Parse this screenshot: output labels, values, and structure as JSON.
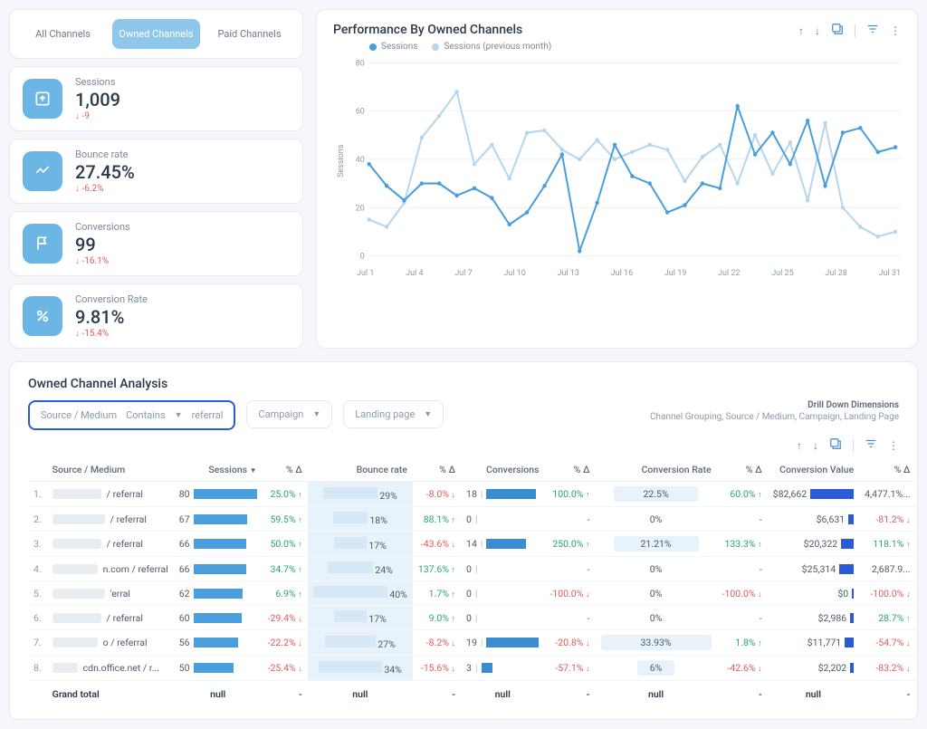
{
  "tabs": {
    "all": "All Channels",
    "owned": "Owned Channels",
    "paid": "Paid Channels"
  },
  "kpis": [
    {
      "label": "Sessions",
      "value": "1,009",
      "delta": "-9",
      "dir": "down",
      "icon": "sessions"
    },
    {
      "label": "Bounce rate",
      "value": "27.45%",
      "delta": "-6.2%",
      "dir": "down",
      "icon": "bounce"
    },
    {
      "label": "Conversions",
      "value": "99",
      "delta": "-16.1%",
      "dir": "down",
      "icon": "flag"
    },
    {
      "label": "Conversion Rate",
      "value": "9.81%",
      "delta": "-15.4%",
      "dir": "down",
      "icon": "percent"
    }
  ],
  "chart": {
    "title": "Performance By Owned Channels",
    "y_label": "Sessions",
    "legend": {
      "current": "Sessions",
      "previous": "Sessions (previous month)"
    },
    "colors": {
      "current": "#4a9edc",
      "previous": "#b5d6ec",
      "grid": "#eef2f6",
      "axis": "#8a9aaa"
    },
    "y_ticks": [
      "0",
      "20",
      "40",
      "60",
      "80"
    ],
    "x_labels": [
      "Jul 1",
      "Jul 4",
      "Jul 7",
      "Jul 10",
      "Jul 13",
      "Jul 16",
      "Jul 19",
      "Jul 22",
      "Jul 25",
      "Jul 28",
      "Jul 31"
    ],
    "y_max": 80,
    "current": [
      38,
      29,
      23,
      30,
      30,
      25,
      28,
      24,
      13,
      18,
      29,
      42,
      2,
      22,
      46,
      33,
      30,
      18,
      21,
      30,
      28,
      62,
      42,
      51,
      38,
      56,
      29,
      51,
      53,
      43,
      45
    ],
    "previous": [
      15,
      12,
      22,
      49,
      58,
      68,
      38,
      46,
      32,
      51,
      52,
      44,
      40,
      48,
      40,
      43,
      46,
      44,
      31,
      41,
      46,
      30,
      50,
      34,
      47,
      23,
      55,
      20,
      12,
      8,
      10
    ]
  },
  "analysis": {
    "title": "Owned Channel Analysis",
    "filters": {
      "sm_label": "Source / Medium",
      "sm_op": "Contains",
      "sm_val": "referral",
      "campaign": "Campaign",
      "landing": "Landing page"
    },
    "drilldown": {
      "title": "Drill Down Dimensions",
      "text": "Channel Grouping, Source / Medium, Campaign, Landing Page"
    },
    "columns": [
      "Source / Medium",
      "Sessions",
      "% Δ",
      "Bounce rate",
      "% Δ",
      "Conversions",
      "% Δ",
      "Conversion Rate",
      "% Δ",
      "Conversion Value",
      "% Δ"
    ],
    "sessions_max": 80,
    "rows": [
      {
        "n": "1.",
        "src": "/ referral",
        "blur_w": 54,
        "sessions": 80,
        "sd": "25.0%",
        "sddir": "up",
        "br": "29%",
        "brw": 60,
        "brd": "-8.0%",
        "brddir": "down",
        "conv": 18,
        "convw": 55,
        "convd": "100.0%",
        "convddir": "up",
        "cr": "22.5%",
        "crw": 52,
        "crd": "60.0%",
        "crddir": "up",
        "cv": "$82,662",
        "cvw": 48,
        "cvd": "4,477.1%..."
      },
      {
        "n": "2.",
        "src": "/ referral",
        "blur_w": 58,
        "sessions": 67,
        "sd": "59.5%",
        "sddir": "up",
        "br": "18%",
        "brw": 38,
        "brd": "88.1%",
        "brddir": "up",
        "conv": 0,
        "convw": 0,
        "convd": "-",
        "convddir": "",
        "cr": "0%",
        "crw": 0,
        "crd": "-",
        "crddir": "",
        "cv": "$6,631",
        "cvw": 6,
        "cvd": "-81.2%",
        "cvddir": "down"
      },
      {
        "n": "3.",
        "src": "/ referral",
        "blur_w": 54,
        "sessions": 66,
        "sd": "50.0%",
        "sddir": "up",
        "br": "17%",
        "brw": 36,
        "brd": "-43.6%",
        "brddir": "down",
        "conv": 14,
        "convw": 44,
        "convd": "250.0%",
        "convddir": "up",
        "cr": "21.21%",
        "crw": 48,
        "crd": "133.3%",
        "crddir": "up",
        "cv": "$20,322",
        "cvw": 14,
        "cvd": "118.1%",
        "cvddir": "up"
      },
      {
        "n": "4.",
        "src": "n.com / referral",
        "blur_w": 50,
        "sessions": 66,
        "sd": "34.7%",
        "sddir": "up",
        "br": "24%",
        "brw": 50,
        "brd": "137.6%",
        "brddir": "up",
        "conv": 0,
        "convw": 0,
        "convd": "-",
        "convddir": "",
        "cr": "0%",
        "crw": 0,
        "crd": "-",
        "crddir": "",
        "cv": "$25,314",
        "cvw": 16,
        "cvd": "2,687.9..."
      },
      {
        "n": "5.",
        "src": "'erral",
        "blur_w": 58,
        "sessions": 62,
        "sd": "6.9%",
        "sddir": "up",
        "br": "40%",
        "brw": 82,
        "brd": "1.7%",
        "brddir": "up",
        "conv": 0,
        "convw": 0,
        "convd": "-100.0%",
        "convddir": "down",
        "cr": "0%",
        "crw": 0,
        "crd": "-100.0%",
        "crddir": "down",
        "cv": "$0",
        "cvw": 2,
        "cvd": "-100.0%",
        "cvddir": "down"
      },
      {
        "n": "6.",
        "src": "/ referral",
        "blur_w": 54,
        "sessions": 60,
        "sd": "-29.4%",
        "sddir": "down",
        "br": "17%",
        "brw": 36,
        "brd": "9.0%",
        "brddir": "up",
        "conv": 0,
        "convw": 0,
        "convd": "-",
        "convddir": "",
        "cr": "0%",
        "crw": 0,
        "crd": "-",
        "crddir": "",
        "cv": "$2,986",
        "cvw": 4,
        "cvd": "28.7%",
        "cvddir": "up"
      },
      {
        "n": "7.",
        "src": "o / referral",
        "blur_w": 50,
        "sessions": 56,
        "sd": "-22.2%",
        "sddir": "down",
        "br": "27%",
        "brw": 56,
        "brd": "-8.2%",
        "brddir": "down",
        "conv": 19,
        "convw": 58,
        "convd": "-20.8%",
        "convddir": "down",
        "cr": "33.93%",
        "crw": 76,
        "crd": "1.8%",
        "crddir": "up",
        "cv": "$11,771",
        "cvw": 10,
        "cvd": "-54.7%",
        "cvddir": "down"
      },
      {
        "n": "8.",
        "src": "cdn.office.net / r...",
        "blur_w": 28,
        "sessions": 50,
        "sd": "-25.4%",
        "sddir": "down",
        "br": "34%",
        "brw": 70,
        "brd": "-15.6%",
        "brddir": "down",
        "conv": 3,
        "convw": 12,
        "convd": "-57.1%",
        "convddir": "down",
        "cr": "6%",
        "crw": 16,
        "crd": "-42.6%",
        "crddir": "down",
        "cv": "$2,202",
        "cvw": 4,
        "cvd": "-83.2%",
        "cvddir": "down"
      }
    ],
    "total": {
      "label": "Grand total",
      "sessions": "null",
      "sd": "-",
      "br": "null",
      "brd": "-",
      "conv": "null",
      "convd": "-",
      "cr": "null",
      "crd": "-",
      "cv": "null",
      "cvd": "-"
    }
  }
}
